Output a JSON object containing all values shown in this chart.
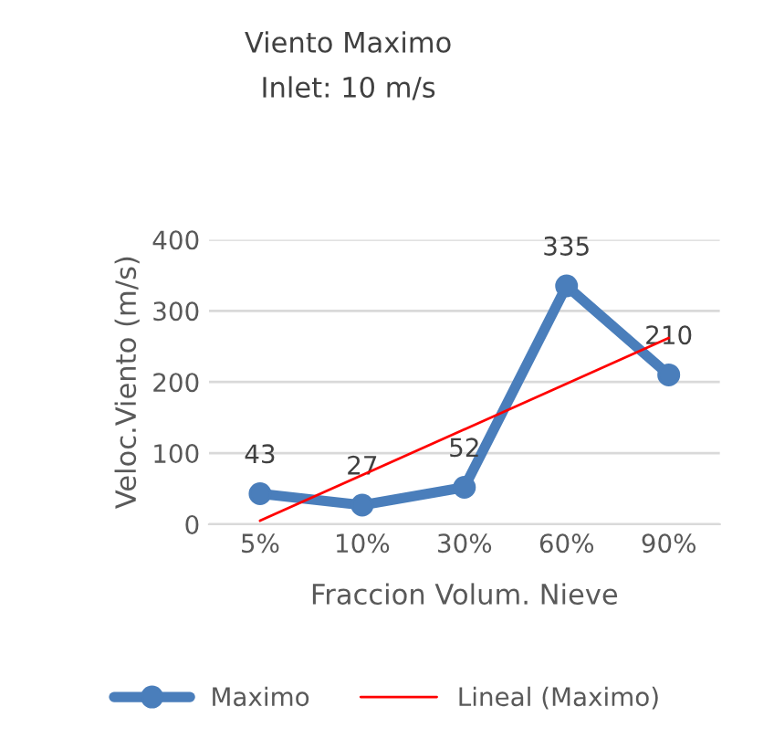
{
  "chart_data": {
    "type": "line",
    "title": "Viento Maximo",
    "subtitle": "Inlet: 10 m/s",
    "xlabel": "Fraccion Volum. Nieve",
    "ylabel": "Veloc.Viento (m/s)",
    "categories": [
      "5%",
      "10%",
      "30%",
      "60%",
      "90%"
    ],
    "series": [
      {
        "name": "Maximo",
        "color": "#4a7ebb",
        "values": [
          43,
          27,
          52,
          335,
          210
        ],
        "value_labels": [
          "43",
          "27",
          "52",
          "335",
          "210"
        ],
        "marker": "circle",
        "line_style": "solid"
      },
      {
        "name": "Lineal (Maximo)",
        "color": "#ff0000",
        "type": "line",
        "x": [
          "5%",
          "90%"
        ],
        "values": [
          5.0,
          261.8
        ],
        "marker": "none",
        "line_style": "solid"
      }
    ],
    "ylim": [
      0,
      400
    ],
    "yticks": [
      0,
      100,
      200,
      300,
      400
    ],
    "grid": "y",
    "legend": "bottom"
  }
}
